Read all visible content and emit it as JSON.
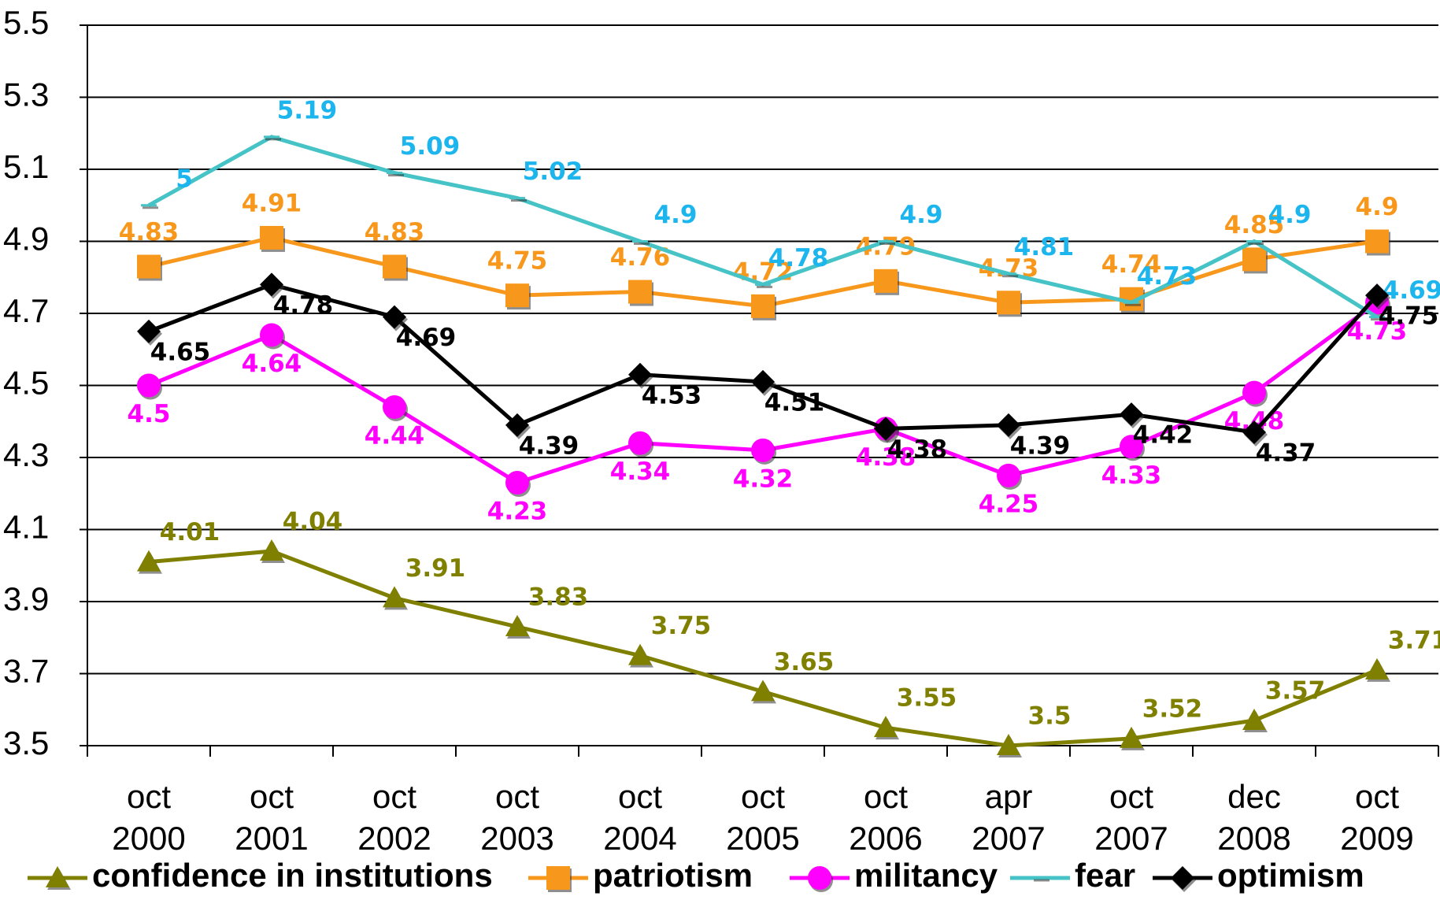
{
  "chart_data": {
    "type": "line",
    "categories": [
      [
        "oct",
        "2000"
      ],
      [
        "oct",
        "2001"
      ],
      [
        "oct",
        "2002"
      ],
      [
        "oct",
        "2003"
      ],
      [
        "oct",
        "2004"
      ],
      [
        "oct",
        "2005"
      ],
      [
        "oct",
        "2006"
      ],
      [
        "apr",
        "2007"
      ],
      [
        "oct",
        "2007"
      ],
      [
        "dec",
        "2008"
      ],
      [
        "oct",
        "2009"
      ]
    ],
    "ylim": [
      3.5,
      5.5
    ],
    "yticks": [
      3.5,
      3.7,
      3.9,
      4.1,
      4.3,
      4.5,
      4.7,
      4.9,
      5.1,
      5.3,
      5.5
    ],
    "grid": true,
    "legend": "bottom",
    "series": [
      {
        "name": "confidence in institutions",
        "color": "#808000",
        "marker": "triangle",
        "values": [
          4.01,
          4.04,
          3.91,
          3.83,
          3.75,
          3.65,
          3.55,
          3.5,
          3.52,
          3.57,
          3.71
        ]
      },
      {
        "name": "patriotism",
        "color": "#f7981d",
        "marker": "square",
        "values": [
          4.83,
          4.91,
          4.83,
          4.75,
          4.76,
          4.72,
          4.79,
          4.73,
          4.74,
          4.85,
          4.9
        ]
      },
      {
        "name": "militancy",
        "color": "#ff00ff",
        "marker": "circle",
        "values": [
          4.5,
          4.64,
          4.44,
          4.23,
          4.34,
          4.32,
          4.38,
          4.25,
          4.33,
          4.48,
          4.73
        ]
      },
      {
        "name": "fear",
        "color": "#45c3c6",
        "label_color": "#1cb5ee",
        "marker": "dash",
        "values": [
          5,
          5.19,
          5.09,
          5.02,
          4.9,
          4.78,
          4.9,
          4.81,
          4.73,
          4.9,
          4.69
        ]
      },
      {
        "name": "optimism",
        "color": "#000000",
        "marker": "diamond",
        "values": [
          4.65,
          4.78,
          4.69,
          4.39,
          4.53,
          4.51,
          4.38,
          4.39,
          4.42,
          4.37,
          4.75
        ]
      }
    ]
  }
}
